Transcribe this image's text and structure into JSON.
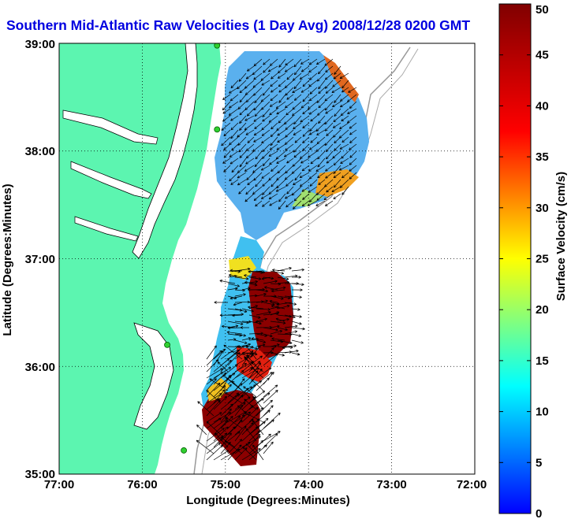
{
  "title": "Southern Mid-Atlantic Raw Velocities (1 Day Avg) 2008/12/28 0200 GMT",
  "map": {
    "xlabel": "Longitude (Degrees:Minutes)",
    "ylabel": "Latitude (Degrees:Minutes)",
    "lon_range": [
      -77,
      -72
    ],
    "lat_range": [
      35,
      39
    ],
    "x_ticks": [
      "77:00",
      "76:00",
      "75:00",
      "74:00",
      "73:00",
      "72:00"
    ],
    "y_ticks": [
      "39:00",
      "38:00",
      "37:00",
      "36:00",
      "35:00"
    ],
    "land_color": "#5cf5b0",
    "grid": "dotted"
  },
  "colorbar": {
    "label": "Surface Velocity (cm/s)",
    "range": [
      0,
      50
    ],
    "ticks": [
      "0",
      "5",
      "10",
      "15",
      "20",
      "25",
      "30",
      "35",
      "40",
      "45",
      "50"
    ],
    "colormap": "jet"
  },
  "stations": [
    {
      "lon": -75.1,
      "lat": 38.98
    },
    {
      "lon": -75.1,
      "lat": 38.2
    },
    {
      "lon": -75.7,
      "lat": 36.2
    },
    {
      "lon": -75.5,
      "lat": 35.22
    }
  ]
}
